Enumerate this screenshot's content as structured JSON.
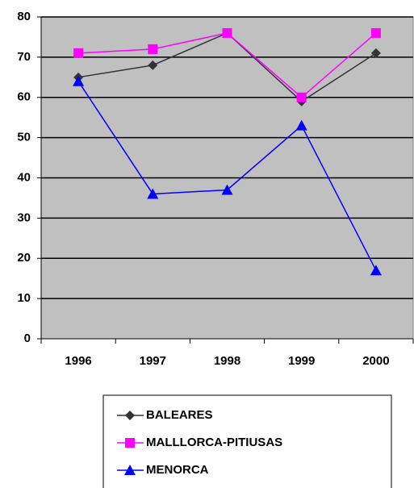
{
  "chart_data": {
    "type": "line",
    "categories": [
      "1996",
      "1997",
      "1998",
      "1999",
      "2000"
    ],
    "series": [
      {
        "name": "BALEARES",
        "color": "#333333",
        "marker": "diamond",
        "values": [
          65,
          68,
          76,
          59,
          71
        ]
      },
      {
        "name": "MALLLORCA-PITIUSAS",
        "color": "#ff00ff",
        "marker": "square",
        "values": [
          71,
          72,
          76,
          60,
          76
        ]
      },
      {
        "name": "MENORCA",
        "color": "#0000ff",
        "marker": "triangle",
        "values": [
          64,
          36,
          37,
          53,
          17
        ]
      }
    ],
    "ylim": [
      0,
      80
    ],
    "yticks": [
      0,
      10,
      20,
      30,
      40,
      50,
      60,
      70,
      80
    ],
    "grid": true,
    "legend": "bottom"
  }
}
